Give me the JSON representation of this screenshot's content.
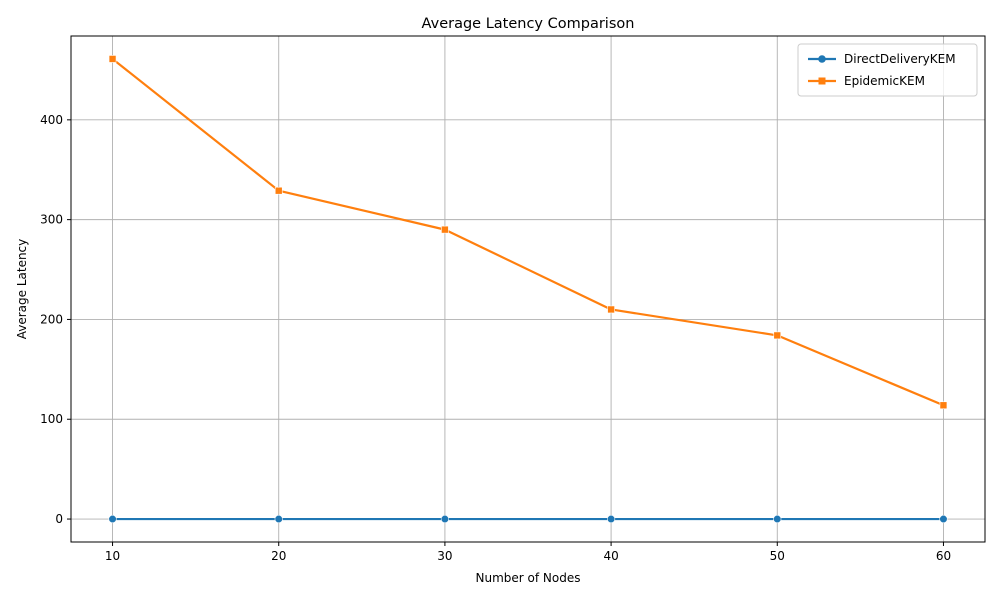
{
  "chart_data": {
    "type": "line",
    "title": "Average Latency Comparison",
    "xlabel": "Number of Nodes",
    "ylabel": "Average Latency",
    "x": [
      10,
      20,
      30,
      40,
      50,
      60
    ],
    "xlim": [
      7.5,
      62.5
    ],
    "ylim": [
      -23,
      484
    ],
    "xticks": [
      10,
      20,
      30,
      40,
      50,
      60
    ],
    "yticks": [
      0,
      100,
      200,
      300,
      400
    ],
    "grid": true,
    "legend_position": "top-right",
    "series": [
      {
        "name": "DirectDeliveryKEM",
        "color": "#1f77b4",
        "marker": "circle",
        "values": [
          0,
          0,
          0,
          0,
          0,
          0
        ]
      },
      {
        "name": "EpidemicKEM",
        "color": "#ff7f0e",
        "marker": "square",
        "values": [
          461,
          329,
          290,
          210,
          184,
          114
        ]
      }
    ]
  }
}
